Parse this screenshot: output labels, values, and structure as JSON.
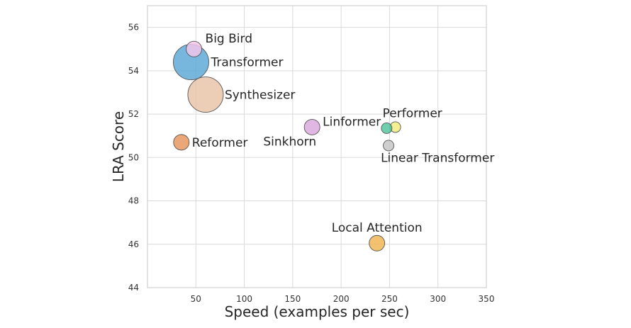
{
  "chart_data": {
    "type": "scatter",
    "title": "",
    "xlabel": "Speed (examples per sec)",
    "ylabel": "LRA Score",
    "xlim": [
      0,
      350
    ],
    "ylim": [
      44,
      57
    ],
    "xticks": [
      50,
      100,
      150,
      200,
      250,
      300,
      350
    ],
    "yticks": [
      44,
      46,
      48,
      50,
      52,
      54,
      56
    ],
    "grid": true,
    "points": [
      {
        "name": "Big Bird",
        "x": 48,
        "y": 55.0,
        "color": "#f5c6ea",
        "size": "small"
      },
      {
        "name": "Transformer",
        "x": 45,
        "y": 54.4,
        "color": "#5aa7d6",
        "size": "large"
      },
      {
        "name": "Synthesizer",
        "x": 60,
        "y": 52.9,
        "color": "#e8c3a6",
        "size": "large"
      },
      {
        "name": "Reformer",
        "x": 35,
        "y": 50.7,
        "color": "#e8945a",
        "size": "small"
      },
      {
        "name": "Linformer",
        "x": 170,
        "y": 51.4,
        "color": "#d9a6dd",
        "size": "small"
      },
      {
        "name": "Sinkhorn",
        "x": 170,
        "y": 51.4,
        "color": "#d9a6dd",
        "size": "small"
      },
      {
        "name": "Performer",
        "x": 256,
        "y": 51.4,
        "color": "#f2ec7a",
        "size": "tiny"
      },
      {
        "name": "Performer",
        "x": 247,
        "y": 51.35,
        "color": "#4fc49b",
        "size": "tiny"
      },
      {
        "name": "Linear Transformer",
        "x": 249,
        "y": 50.55,
        "color": "#c4c4c4",
        "size": "tiny"
      },
      {
        "name": "Local Attention",
        "x": 237,
        "y": 46.05,
        "color": "#f0b452",
        "size": "small"
      }
    ],
    "labels": [
      "Big Bird",
      "Transformer",
      "Synthesizer",
      "Reformer",
      "Linformer",
      "Sinkhorn",
      "Performer",
      "Linear Transformer",
      "Local Attention"
    ]
  }
}
